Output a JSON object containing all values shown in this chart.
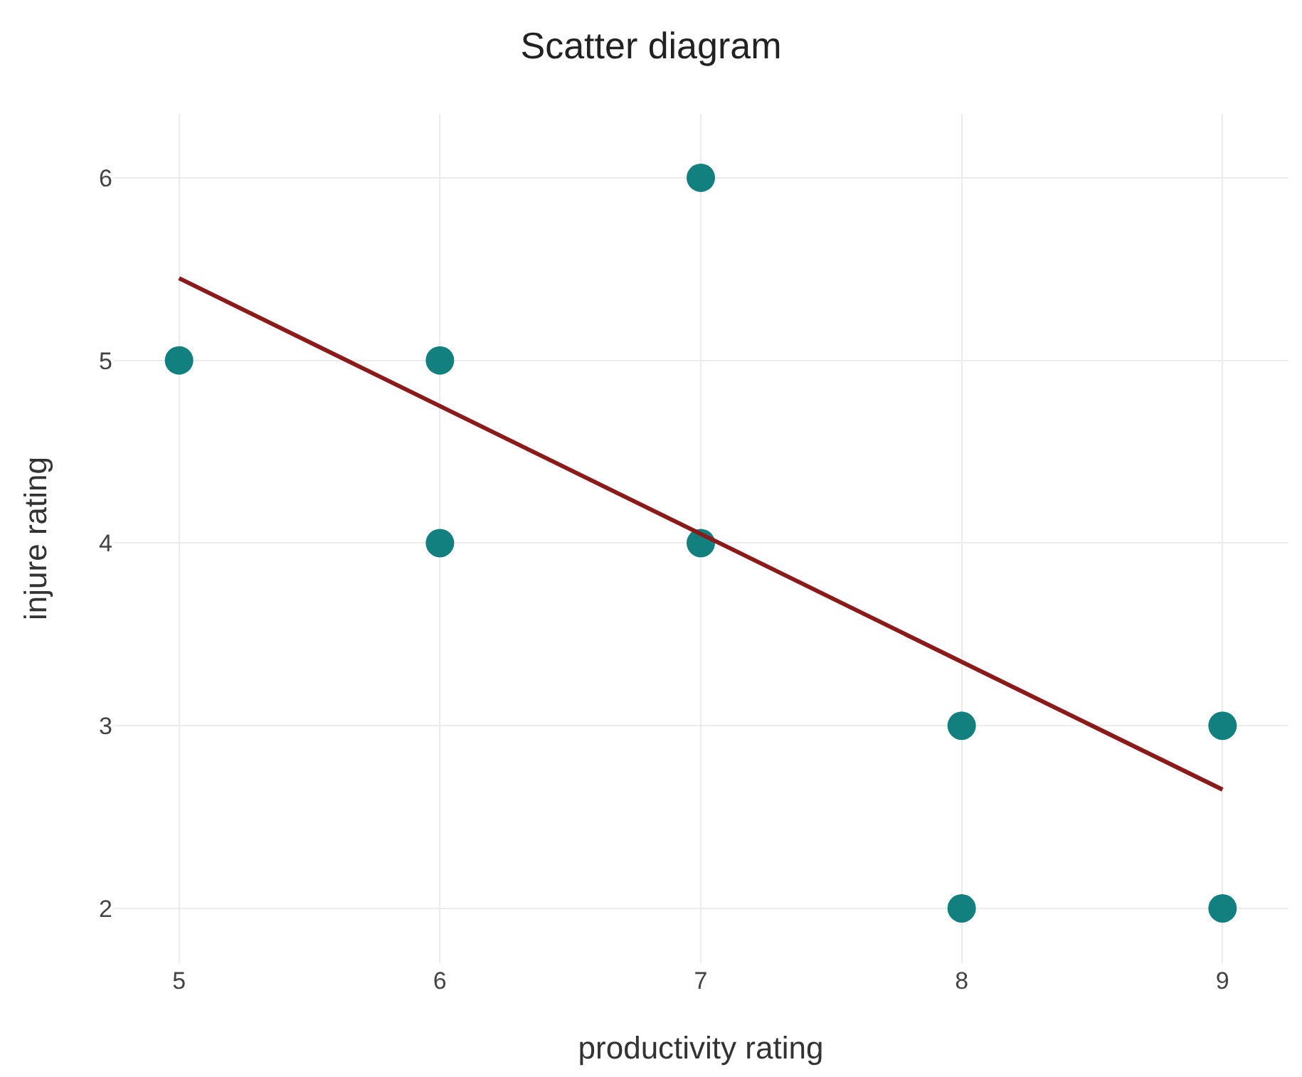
{
  "chart_data": {
    "type": "scatter",
    "title": "Scatter diagram",
    "xlabel": "productivity rating",
    "ylabel": "injure rating",
    "x": [
      5,
      6,
      6,
      7,
      7,
      8,
      8,
      9,
      9
    ],
    "series": [
      {
        "color": "#11807e",
        "marker": "circle",
        "values": [
          5,
          5,
          4,
          6,
          4,
          3,
          2,
          3,
          2
        ]
      },
      {
        "type": "line",
        "color": "#8b1a1a",
        "marker": "none",
        "x": [
          5,
          9
        ],
        "values": [
          5.45,
          2.65
        ]
      }
    ],
    "xlim": [
      4.75,
      9.25
    ],
    "ylim": [
      1.7,
      6.35
    ],
    "xticks": [
      5,
      6,
      7,
      8,
      9
    ],
    "yticks": [
      2,
      3,
      4,
      5,
      6
    ],
    "grid": true,
    "legend": false
  }
}
